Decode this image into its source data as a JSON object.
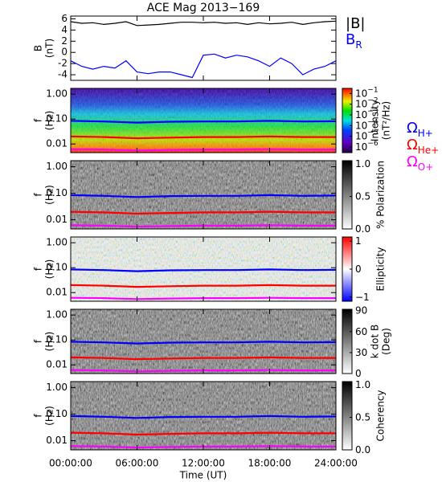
{
  "chart_data": [
    {
      "type": "line",
      "title": "ACE Mag 2013−169",
      "ylabel": [
        "B",
        "(nT)"
      ],
      "ylim": [
        -5,
        6.5
      ],
      "yticks": [
        -4,
        -2,
        0,
        2,
        4,
        6
      ],
      "x": [
        0,
        1,
        2,
        3,
        4,
        5,
        6,
        7,
        8,
        9,
        10,
        11,
        12,
        13,
        14,
        15,
        16,
        17,
        18,
        19,
        20,
        21,
        22,
        23,
        24
      ],
      "series": [
        {
          "name": "|B|",
          "color": "#000000",
          "values": [
            5.5,
            5.2,
            5.3,
            5.0,
            5.2,
            5.5,
            4.8,
            4.9,
            5.0,
            5.2,
            5.4,
            5.4,
            5.3,
            5.4,
            5.2,
            5.3,
            5.0,
            5.3,
            5.1,
            5.2,
            5.4,
            5.0,
            5.3,
            5.5,
            5.6
          ]
        },
        {
          "name": "B",
          "subscript": "R",
          "color": "#0000ff",
          "values": [
            -1.5,
            -2.5,
            -3.0,
            -2.5,
            -2.8,
            -1.5,
            -3.5,
            -3.8,
            -3.5,
            -3.5,
            -4.0,
            -4.5,
            -0.5,
            -0.3,
            -1.0,
            -0.5,
            -0.8,
            -1.5,
            -2.5,
            -1.0,
            -2.0,
            -4.0,
            -3.0,
            -2.5,
            -1.5
          ]
        }
      ]
    },
    {
      "type": "spectrogram",
      "ylabel": [
        "f",
        "(Hz)"
      ],
      "log_y": true,
      "ylim": [
        0.0045,
        1.7
      ],
      "yticks": [
        {
          "value": 1,
          "label": "1.00"
        },
        {
          "value": 0.1,
          "label": "0.10"
        },
        {
          "value": 0.01,
          "label": "0.01"
        }
      ],
      "colormap": "rainbow",
      "colorbar_label": [
        "Intensity",
        "(nT²/Hz)"
      ],
      "clog": true,
      "clim": [
        3e-07,
        0.3
      ],
      "cticks": [
        {
          "value": 0.1,
          "label": "10",
          "exponent": "−1"
        },
        {
          "value": 0.01,
          "label": "10",
          "exponent": "−2"
        },
        {
          "value": 0.001,
          "label": "10",
          "exponent": "−3"
        },
        {
          "value": 0.0001,
          "label": "10",
          "exponent": "−4"
        },
        {
          "value": 1e-05,
          "label": "10",
          "exponent": "−5"
        },
        {
          "value": 1e-06,
          "label": "10",
          "exponent": "−6"
        }
      ],
      "x": [
        0,
        3,
        6,
        9,
        12,
        15,
        18,
        21,
        24
      ],
      "series": [
        {
          "name": "Ω",
          "subscript": "H+",
          "color": "#0000ff",
          "values": [
            0.085,
            0.08,
            0.072,
            0.078,
            0.08,
            0.08,
            0.085,
            0.08,
            0.082
          ]
        },
        {
          "name": "Ω",
          "subscript": "He+",
          "color": "#ff0000",
          "values": [
            0.02,
            0.019,
            0.017,
            0.018,
            0.019,
            0.019,
            0.02,
            0.019,
            0.019
          ]
        },
        {
          "name": "Ω",
          "subscript": "O+",
          "color": "#ff00ff",
          "values": [
            0.0062,
            0.006,
            0.0055,
            0.0058,
            0.006,
            0.006,
            0.0062,
            0.006,
            0.006
          ]
        }
      ]
    },
    {
      "type": "spectrogram",
      "ylabel": [
        "f",
        "(Hz)"
      ],
      "log_y": true,
      "ylim": [
        0.0045,
        1.7
      ],
      "yticks": [
        {
          "value": 1,
          "label": "1.00"
        },
        {
          "value": 0.1,
          "label": "0.10"
        },
        {
          "value": 0.01,
          "label": "0.01"
        }
      ],
      "colormap": "gray_r",
      "colorbar_label": [
        "% Polarization"
      ],
      "clim": [
        0,
        1.05
      ],
      "cticks": [
        {
          "value": 0,
          "label": "0.0"
        },
        {
          "value": 0.5,
          "label": "0.5"
        },
        {
          "value": 1,
          "label": "1.0"
        }
      ],
      "x": [
        0,
        3,
        6,
        9,
        12,
        15,
        18,
        21,
        24
      ],
      "series": [
        {
          "color": "#0000ff",
          "values": [
            0.085,
            0.08,
            0.072,
            0.078,
            0.08,
            0.08,
            0.085,
            0.08,
            0.082
          ]
        },
        {
          "color": "#ff0000",
          "values": [
            0.02,
            0.019,
            0.017,
            0.018,
            0.019,
            0.019,
            0.02,
            0.019,
            0.019
          ]
        },
        {
          "color": "#ff00ff",
          "values": [
            0.0062,
            0.006,
            0.0055,
            0.0058,
            0.006,
            0.006,
            0.0062,
            0.006,
            0.006
          ]
        }
      ]
    },
    {
      "type": "spectrogram",
      "ylabel": [
        "f",
        "(Hz)"
      ],
      "log_y": true,
      "ylim": [
        0.0045,
        1.7
      ],
      "yticks": [
        {
          "value": 1,
          "label": "1.00"
        },
        {
          "value": 0.1,
          "label": "0.10"
        },
        {
          "value": 0.01,
          "label": "0.01"
        }
      ],
      "colormap": "bwr",
      "colorbar_label": [
        "Ellipticity"
      ],
      "clim": [
        -1.15,
        1.15
      ],
      "cticks": [
        {
          "value": 1,
          "label": "1"
        },
        {
          "value": 0,
          "label": "0"
        },
        {
          "value": -1,
          "label": "−1"
        }
      ],
      "x": [
        0,
        3,
        6,
        9,
        12,
        15,
        18,
        21,
        24
      ],
      "series": [
        {
          "color": "#0000ff",
          "values": [
            0.085,
            0.08,
            0.072,
            0.078,
            0.08,
            0.08,
            0.085,
            0.08,
            0.082
          ]
        },
        {
          "color": "#ff0000",
          "values": [
            0.02,
            0.019,
            0.017,
            0.018,
            0.019,
            0.019,
            0.02,
            0.019,
            0.019
          ]
        },
        {
          "color": "#ff00ff",
          "values": [
            0.0062,
            0.006,
            0.0055,
            0.0058,
            0.006,
            0.006,
            0.0062,
            0.006,
            0.006
          ]
        }
      ]
    },
    {
      "type": "spectrogram",
      "ylabel": [
        "f",
        "(Hz)"
      ],
      "log_y": true,
      "ylim": [
        0.0045,
        1.7
      ],
      "yticks": [
        {
          "value": 1,
          "label": "1.00"
        },
        {
          "value": 0.1,
          "label": "0.10"
        },
        {
          "value": 0.01,
          "label": "0.01"
        }
      ],
      "colormap": "gray_r",
      "colorbar_label": [
        "k dot B",
        "(Deg)"
      ],
      "clim": [
        0,
        92
      ],
      "cticks": [
        0,
        30,
        60,
        90
      ],
      "x": [
        0,
        3,
        6,
        9,
        12,
        15,
        18,
        21,
        24
      ],
      "series": [
        {
          "color": "#0000ff",
          "values": [
            0.085,
            0.08,
            0.072,
            0.078,
            0.08,
            0.08,
            0.085,
            0.08,
            0.082
          ]
        },
        {
          "color": "#ff0000",
          "values": [
            0.02,
            0.019,
            0.017,
            0.018,
            0.019,
            0.019,
            0.02,
            0.019,
            0.019
          ]
        },
        {
          "color": "#ff00ff",
          "values": [
            0.0062,
            0.006,
            0.0055,
            0.0058,
            0.006,
            0.006,
            0.0062,
            0.006,
            0.006
          ]
        }
      ]
    },
    {
      "type": "spectrogram",
      "ylabel": [
        "f",
        "(Hz)"
      ],
      "log_y": true,
      "ylim": [
        0.0045,
        1.7
      ],
      "yticks": [
        {
          "value": 1,
          "label": "1.00"
        },
        {
          "value": 0.1,
          "label": "0.10"
        },
        {
          "value": 0.01,
          "label": "0.01"
        }
      ],
      "colormap": "gray_r",
      "colorbar_label": [
        "Coherency"
      ],
      "clim": [
        0,
        1.05
      ],
      "cticks": [
        {
          "value": 0,
          "label": "0.0"
        },
        {
          "value": 0.5,
          "label": "0.5"
        },
        {
          "value": 1,
          "label": "1.0"
        }
      ],
      "x": [
        0,
        3,
        6,
        9,
        12,
        15,
        18,
        21,
        24
      ],
      "series": [
        {
          "color": "#0000ff",
          "values": [
            0.085,
            0.08,
            0.072,
            0.078,
            0.08,
            0.08,
            0.085,
            0.08,
            0.082
          ]
        },
        {
          "color": "#ff0000",
          "values": [
            0.02,
            0.019,
            0.017,
            0.018,
            0.019,
            0.019,
            0.02,
            0.019,
            0.019
          ]
        },
        {
          "color": "#ff00ff",
          "values": [
            0.0062,
            0.006,
            0.0055,
            0.0058,
            0.006,
            0.006,
            0.0062,
            0.006,
            0.006
          ]
        }
      ],
      "xlabel": "Time (UT)",
      "xlim": [
        0,
        24
      ],
      "xticks": [
        {
          "value": 0,
          "label": "00:00:00"
        },
        {
          "value": 6,
          "label": "06:00:00"
        },
        {
          "value": 12,
          "label": "12:00:00"
        },
        {
          "value": 18,
          "label": "18:00:00"
        },
        {
          "value": 24,
          "label": "24:00:00"
        }
      ]
    }
  ]
}
